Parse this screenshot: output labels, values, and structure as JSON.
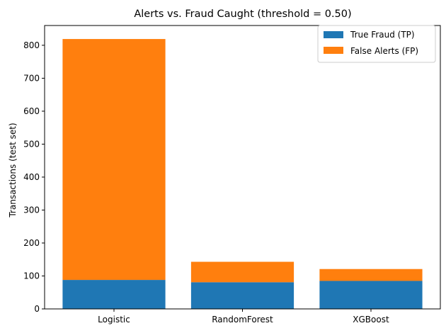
{
  "chart_data": {
    "type": "bar",
    "stacked": true,
    "title": "Alerts vs. Fraud Caught (threshold = 0.50)",
    "xlabel": "",
    "ylabel": "Transactions (test set)",
    "categories": [
      "Logistic",
      "RandomForest",
      "XGBoost"
    ],
    "series": [
      {
        "name": "True Fraud (TP)",
        "color": "#1f77b4",
        "values": [
          88,
          81,
          85
        ]
      },
      {
        "name": "False Alerts (FP)",
        "color": "#ff7f0e",
        "values": [
          731,
          62,
          36
        ]
      }
    ],
    "ylim": [
      0,
      860
    ],
    "yticks": [
      0,
      100,
      200,
      300,
      400,
      500,
      600,
      700,
      800
    ],
    "grid": false,
    "legend_position": "top-right"
  }
}
